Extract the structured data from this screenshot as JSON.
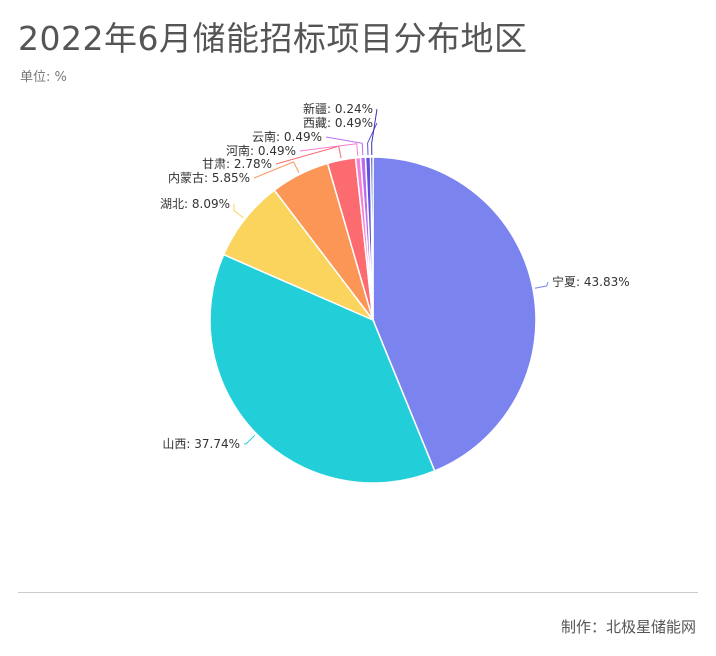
{
  "title": "2022年6月储能招标项目分布地区",
  "unit": "单位: %",
  "footer": "制作：北极星储能网",
  "chart_data": {
    "type": "pie",
    "title": "2022年6月储能招标项目分布地区",
    "slices": [
      {
        "label": "宁夏: 43.83%",
        "name": "宁夏",
        "value": 43.83,
        "color": "#7b83ef"
      },
      {
        "label": "山西: 37.74%",
        "name": "山西",
        "value": 37.74,
        "color": "#22cfd9"
      },
      {
        "label": "湖北: 8.09%",
        "name": "湖北",
        "value": 8.09,
        "color": "#fbd45e"
      },
      {
        "label": "内蒙古: 5.85%",
        "name": "内蒙古",
        "value": 5.85,
        "color": "#fb9656"
      },
      {
        "label": "甘肃: 2.78%",
        "name": "甘肃",
        "value": 2.78,
        "color": "#fb6b6f"
      },
      {
        "label": "河南: 0.49%",
        "name": "河南",
        "value": 0.49,
        "color": "#f77ed1"
      },
      {
        "label": "云南: 0.49%",
        "name": "云南",
        "value": 0.49,
        "color": "#b86df0"
      },
      {
        "label": "西藏: 0.49%",
        "name": "西藏",
        "value": 0.49,
        "color": "#5a52d9"
      },
      {
        "label": "新疆: 0.24%",
        "name": "新疆",
        "value": 0.24,
        "color": "#3d2fb8"
      }
    ]
  }
}
